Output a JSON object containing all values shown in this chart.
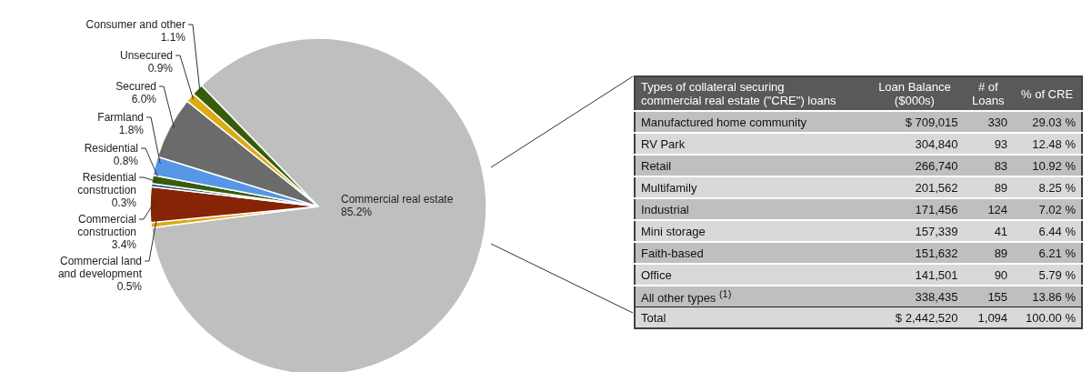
{
  "chart_data": [
    {
      "type": "pie",
      "categories": [
        "Commercial real estate",
        "Commercial land and development",
        "Commercial construction",
        "Residential construction",
        "Residential",
        "Farmland",
        "Secured",
        "Unsecured",
        "Consumer and other"
      ],
      "values": [
        85.2,
        0.5,
        3.4,
        0.3,
        0.8,
        1.8,
        6.0,
        0.9,
        1.1
      ],
      "value_labels": [
        "85.2%",
        "0.5%",
        "3.4%",
        "0.3%",
        "0.8%",
        "1.8%",
        "6.0%",
        "0.9%",
        "1.1%"
      ],
      "colors": [
        "#bfbfbf",
        "#dcaa14",
        "#862405",
        "#1f4e79",
        "#375c0a",
        "#5596e6",
        "#6b6b6b",
        "#dcaa14",
        "#375c0a"
      ],
      "data_labels": true
    },
    {
      "type": "other",
      "xlabel": "Types of collateral securing commercial real estate (\"CRE\") loans",
      "categories": [
        "Manufactured home community",
        "RV Park",
        "Retail",
        "Multifamily",
        "Industrial",
        "Mini storage",
        "Faith-based",
        "Office",
        "All other types $^{(1)}$",
        "Total"
      ],
      "series": [
        {
          "name": "Loan Balance ($000s)",
          "colors": [
            "#bfbfbf",
            "#d9d9d9",
            "#bfbfbf",
            "#d9d9d9",
            "#bfbfbf",
            "#d9d9d9",
            "#bfbfbf",
            "#d9d9d9",
            "#bfbfbf",
            "#d9d9d9"
          ],
          "values": [
            709015,
            304840,
            266740,
            201562,
            171456,
            157339,
            151632,
            141501,
            338435,
            2442520
          ],
          "value_labels": [
            "$ 709,015",
            "304,840",
            "266,740",
            "201,562",
            "171,456",
            "157,339",
            "151,632",
            "141,501",
            "338,435",
            "$ 2,442,520"
          ]
        },
        {
          "name": "# of Loans",
          "colors": [
            "#bfbfbf",
            "#d9d9d9",
            "#bfbfbf",
            "#d9d9d9",
            "#bfbfbf",
            "#d9d9d9",
            "#bfbfbf",
            "#d9d9d9",
            "#bfbfbf",
            "#d9d9d9"
          ],
          "values": [
            330,
            93,
            83,
            89,
            124,
            41,
            89,
            90,
            155,
            1094
          ],
          "value_labels": [
            "330",
            "93",
            "83",
            "89",
            "124",
            "41",
            "89",
            "90",
            "155",
            "1,094"
          ]
        },
        {
          "name": "% of CRE",
          "colors": [
            "#bfbfbf",
            "#d9d9d9",
            "#bfbfbf",
            "#d9d9d9",
            "#bfbfbf",
            "#d9d9d9",
            "#bfbfbf",
            "#d9d9d9",
            "#bfbfbf",
            "#d9d9d9"
          ],
          "values": [
            29.03,
            12.48,
            10.92,
            8.25,
            7.02,
            6.44,
            6.21,
            5.79,
            13.86,
            100.0
          ],
          "value_labels": [
            "29.03 %",
            "12.48 %",
            "10.92 %",
            "8.25 %",
            "7.02 %",
            "6.44 %",
            "6.21 %",
            "5.79 %",
            "13.86 %",
            "100.00 %"
          ]
        }
      ],
      "data_labels": true
    }
  ]
}
